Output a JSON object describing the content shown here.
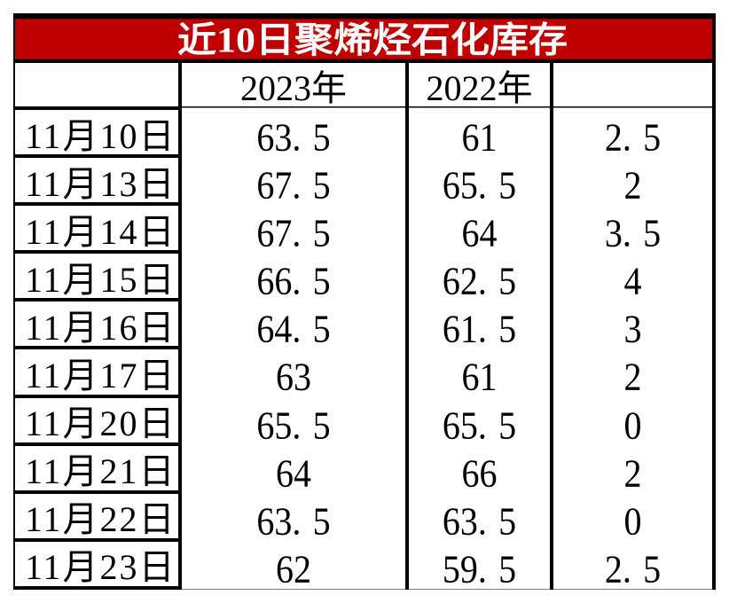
{
  "table": {
    "title": "近10日聚烯烃石化库存",
    "header": {
      "col1": "",
      "col2": "2023年",
      "col3": "2022年",
      "col4": ""
    },
    "rows": [
      {
        "date": "11月10日",
        "y2023": "63.5",
        "y2022": "61",
        "diff": "2.5"
      },
      {
        "date": "11月13日",
        "y2023": "67.5",
        "y2022": "65.5",
        "diff": "2"
      },
      {
        "date": "11月14日",
        "y2023": "67.5",
        "y2022": "64",
        "diff": "3.5"
      },
      {
        "date": "11月15日",
        "y2023": "66.5",
        "y2022": "62.5",
        "diff": "4"
      },
      {
        "date": "11月16日",
        "y2023": "64.5",
        "y2022": "61.5",
        "diff": "3"
      },
      {
        "date": "11月17日",
        "y2023": "63",
        "y2022": "61",
        "diff": "2"
      },
      {
        "date": "11月20日",
        "y2023": "65.5",
        "y2022": "65.5",
        "diff": "0"
      },
      {
        "date": "11月21日",
        "y2023": "64",
        "y2022": "66",
        "diff": "2"
      },
      {
        "date": "11月22日",
        "y2023": "63.5",
        "y2022": "63.5",
        "diff": "0"
      },
      {
        "date": "11月23日",
        "y2023": "62",
        "y2022": "59.5",
        "diff": "2.5"
      }
    ]
  },
  "colors": {
    "title_background": "#c00000",
    "title_text": "#ffffff",
    "grid_border": "#000000",
    "cell_background": "#ffffff",
    "body_text": "#000000"
  },
  "chart_data": {
    "type": "table",
    "title": "近10日聚烯烃石化库存",
    "categories": [
      "11月10日",
      "11月13日",
      "11月14日",
      "11月15日",
      "11月16日",
      "11月17日",
      "11月20日",
      "11月21日",
      "11月22日",
      "11月23日"
    ],
    "series": [
      {
        "name": "2023年",
        "values": [
          63.5,
          67.5,
          67.5,
          66.5,
          64.5,
          63,
          65.5,
          64,
          63.5,
          62
        ]
      },
      {
        "name": "2022年",
        "values": [
          61,
          65.5,
          64,
          62.5,
          61.5,
          61,
          65.5,
          66,
          63.5,
          59.5
        ]
      },
      {
        "name": "",
        "values": [
          2.5,
          2,
          3.5,
          4,
          3,
          2,
          0,
          2,
          0,
          2.5
        ]
      }
    ],
    "legend_position": "none",
    "grid": true
  }
}
